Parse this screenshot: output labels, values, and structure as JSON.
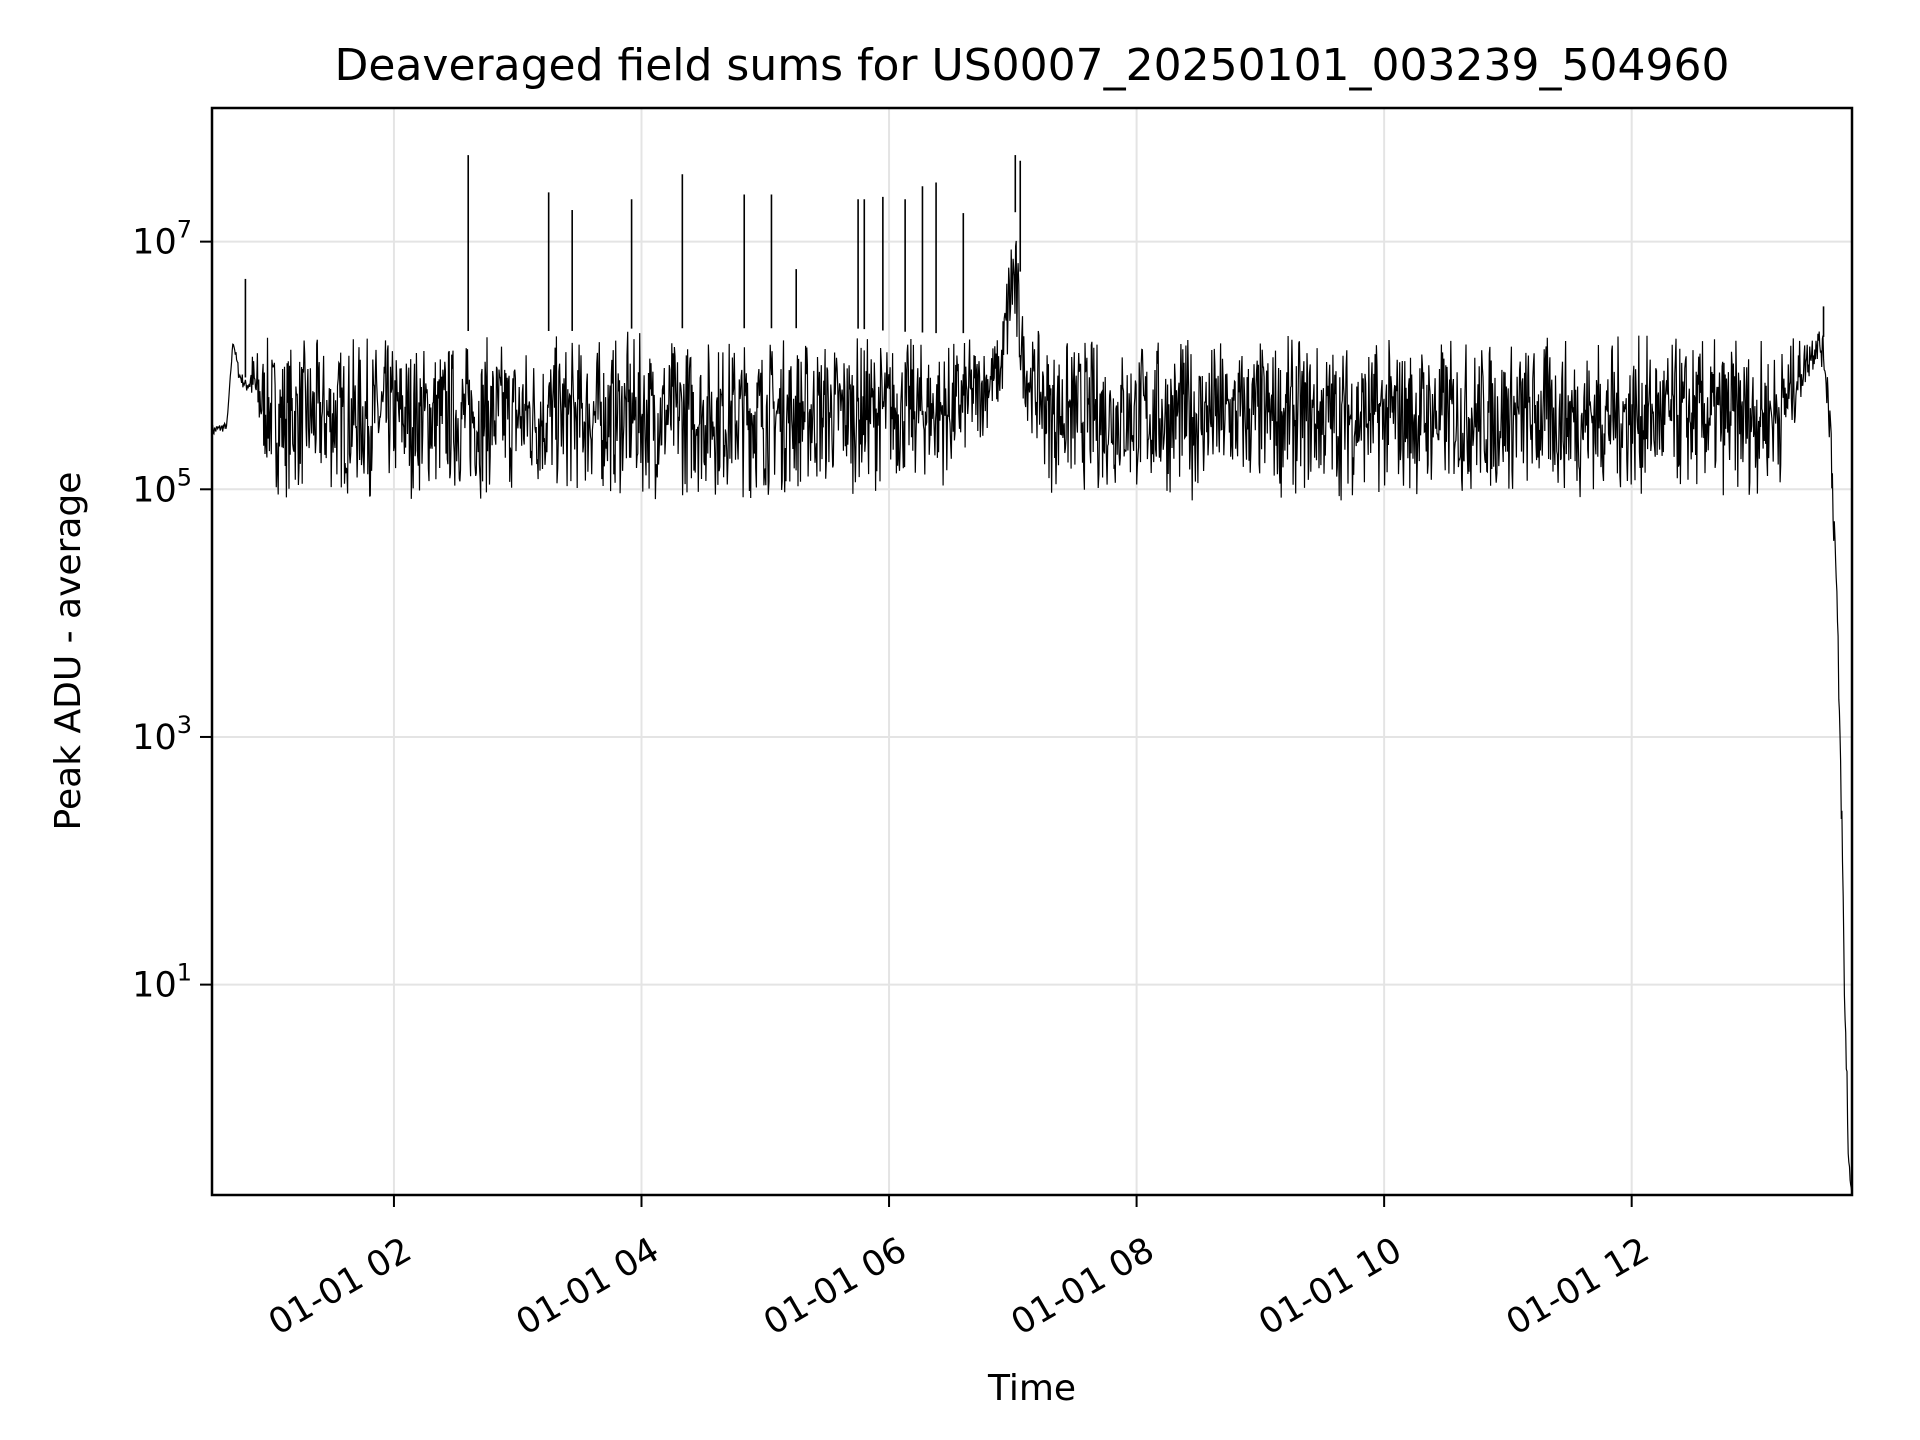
{
  "chart_data": {
    "type": "line",
    "title": "Deaveraged field sums for US0007_20250101_003239_504960",
    "xlabel": "Time",
    "ylabel": "Peak ADU - average",
    "x_tick_labels": [
      "01-01 02",
      "01-01 04",
      "01-01 06",
      "01-01 08",
      "01-01 10",
      "01-01 12"
    ],
    "y_tick_labels": [
      {
        "base": "10",
        "exp": "1"
      },
      {
        "base": "10",
        "exp": "3"
      },
      {
        "base": "10",
        "exp": "5"
      },
      {
        "base": "10",
        "exp": "7"
      }
    ],
    "y_scale": "log",
    "ylim": [
      0.2,
      120000000
    ],
    "xlim_hours": [
      0.53,
      13.78
    ],
    "grid": true,
    "line_color": "#000000",
    "series": [
      {
        "x_hours": [
          0.53,
          0.65,
          0.7,
          0.75,
          0.8,
          0.85,
          0.9,
          0.95,
          1.0,
          1.1,
          1.3,
          1.6,
          2.0,
          2.6,
          3.0,
          3.5,
          4.0,
          5.0,
          5.7,
          6.0,
          6.5,
          6.9,
          7.0,
          7.1,
          7.3,
          8.0,
          9.0,
          10.0,
          11.0,
          12.0,
          12.9,
          13.2,
          13.4,
          13.5,
          13.55,
          13.6,
          13.65,
          13.7,
          13.72,
          13.74,
          13.75,
          13.78
        ],
        "y_envelope_low": [
          250000,
          300000,
          1500000,
          700000,
          600000,
          400000,
          200000,
          130000,
          100000,
          80000,
          80000,
          80000,
          80000,
          80000,
          80000,
          80000,
          80000,
          80000,
          90000,
          100000,
          100000,
          400000,
          1000000,
          400000,
          90000,
          80000,
          80000,
          80000,
          80000,
          80000,
          80000,
          100000,
          600000,
          1000000,
          900000,
          200000,
          10000,
          100,
          5,
          1,
          0.3,
          0.2
        ],
        "y_envelope_high": [
          350000,
          350000,
          1700000,
          1000000,
          800000,
          1500000,
          1700000,
          1800000,
          1800000,
          1800000,
          1800000,
          1800000,
          1900000,
          1900000,
          1900000,
          1900000,
          2000000,
          2000000,
          2000000,
          1900000,
          1800000,
          1900000,
          30000000,
          1900000,
          1900000,
          1900000,
          1900000,
          1900000,
          1900000,
          1900000,
          1800000,
          1800000,
          1800000,
          2500000,
          1700000,
          1000000,
          50000,
          300,
          10,
          3,
          0.5,
          0.2
        ]
      }
    ],
    "spikes": [
      {
        "x_hours": 0.8,
        "y": 5000000
      },
      {
        "x_hours": 2.6,
        "y": 50000000
      },
      {
        "x_hours": 3.25,
        "y": 25000000
      },
      {
        "x_hours": 3.44,
        "y": 18000000
      },
      {
        "x_hours": 3.92,
        "y": 22000000
      },
      {
        "x_hours": 4.33,
        "y": 35000000
      },
      {
        "x_hours": 4.83,
        "y": 24000000
      },
      {
        "x_hours": 5.05,
        "y": 24000000
      },
      {
        "x_hours": 5.25,
        "y": 6000000
      },
      {
        "x_hours": 5.75,
        "y": 22000000
      },
      {
        "x_hours": 5.8,
        "y": 22000000
      },
      {
        "x_hours": 5.95,
        "y": 23000000
      },
      {
        "x_hours": 6.13,
        "y": 22000000
      },
      {
        "x_hours": 6.27,
        "y": 28000000
      },
      {
        "x_hours": 6.38,
        "y": 30000000
      },
      {
        "x_hours": 6.6,
        "y": 17000000
      },
      {
        "x_hours": 7.02,
        "y": 50000000
      },
      {
        "x_hours": 7.06,
        "y": 45000000
      },
      {
        "x_hours": 13.55,
        "y": 3000000
      }
    ]
  }
}
